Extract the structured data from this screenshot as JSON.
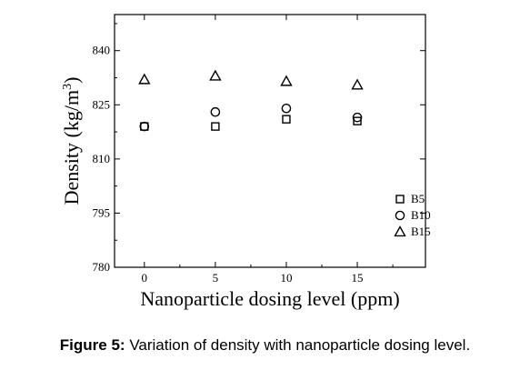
{
  "caption": {
    "label": "Figure 5:",
    "text": "Variation of density with nanoparticle dosing level."
  },
  "chart_data": {
    "type": "scatter",
    "title": "",
    "xlabel": "Nanoparticle dosing level (ppm)",
    "ylabel": "Density (kg/m",
    "ylabel_sup": "3",
    "ylabel_close": ")",
    "x": [
      0,
      5,
      10,
      15
    ],
    "xticks": [
      0,
      5,
      10,
      15
    ],
    "xtick_labels": [
      "0",
      "5",
      "10",
      "15"
    ],
    "yticks": [
      780,
      795,
      810,
      825,
      840
    ],
    "ytick_labels": [
      "780",
      "795",
      "810",
      "825",
      "840"
    ],
    "xlim": [
      -2.1,
      19.8
    ],
    "ylim": [
      780,
      850
    ],
    "grid": false,
    "legend_position": "bottom-right",
    "series": [
      {
        "name": "B5",
        "marker": "square",
        "values": [
          819,
          819,
          821,
          820.5
        ]
      },
      {
        "name": "B10",
        "marker": "circle",
        "values": [
          819,
          823,
          824,
          821.5
        ]
      },
      {
        "name": "B15",
        "marker": "triangle",
        "values": [
          832,
          833,
          831.5,
          830.5
        ]
      }
    ]
  }
}
